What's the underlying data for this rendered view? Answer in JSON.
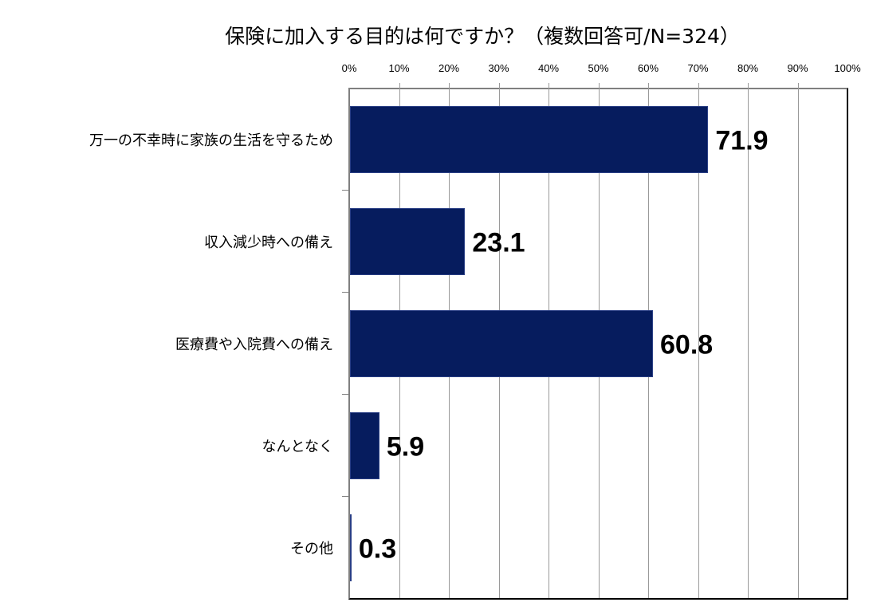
{
  "chart_data": {
    "type": "bar",
    "orientation": "horizontal",
    "title": "保険に加入する目的は何ですか？（複数回答可/N=324）",
    "xlabel": "",
    "ylabel": "",
    "xlim": [
      0,
      100
    ],
    "x_ticks": [
      "0%",
      "10%",
      "20%",
      "30%",
      "40%",
      "50%",
      "60%",
      "70%",
      "80%",
      "90%",
      "100%"
    ],
    "x_axis_position": "top",
    "grid": true,
    "legend": null,
    "bar_color": "#061c5e",
    "categories": [
      "万一の不幸時に家族の生活を守るため",
      "収入減少時への備え",
      "医療費や入院費への備え",
      "なんとなく",
      "その他"
    ],
    "values": [
      71.9,
      23.1,
      60.8,
      5.9,
      0.3
    ],
    "value_labels": [
      "71.9",
      "23.1",
      "60.8",
      "5.9",
      "0.3"
    ]
  }
}
